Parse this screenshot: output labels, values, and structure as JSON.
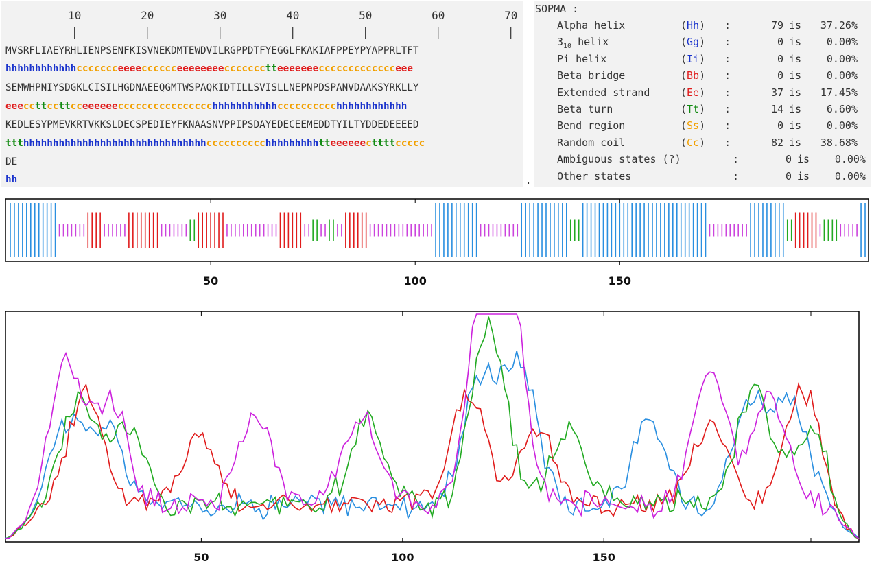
{
  "sequence_panel": {
    "ruler_numbers": [
      "10",
      "20",
      "30",
      "40",
      "50",
      "60",
      "70"
    ],
    "sequence_lines": [
      "MVSRFLIAEYRHLIENPSENFKISVNEKDMTEWDVILRGPPDTFYEGGLFKAKIAFPPEYPYAPPRLTFT",
      "SEMWHPNIYSDGKLCISILHGDNAEEQGMTWSPAQKIDTILLSVISLLNEPNPDSPANVDAAKSYRKLLY",
      "KEDLESYPMEVKRTVKKSLDECSPEDIEYFKNAASNVPPIPSDAYEDECEEMEDDTYILTYDDEDEEEED",
      "DE"
    ],
    "structure_lines": [
      "hhhhhhhhhhhhccccccceeeecccccceeeeeeeeccccccctteeeeeeeccccccccccccceee",
      "eeeccttccttcceeeeeecccccccccccccccchhhhhhhhhhhcccccccccchhhhhhhhhhhh",
      "ttthhhhhhhhhhhhhhhhhhhhhhhhhhhhhhhcccccccccchhhhhhhhhtteeeeeecttttccccc",
      "hh"
    ],
    "trailing_mark": "."
  },
  "stats_panel": {
    "title": "SOPMA :",
    "rows": [
      {
        "label": "Alpha helix",
        "code": "(Hh)",
        "count": "79",
        "is": "is",
        "pct": "37.26%"
      },
      {
        "label_main": "3",
        "label_sub": "10",
        "label_rest": " helix",
        "code": "(Gg)",
        "count": "0",
        "is": "is",
        "pct": "0.00%"
      },
      {
        "label": "Pi helix",
        "code": "(Ii)",
        "count": "0",
        "is": "is",
        "pct": "0.00%"
      },
      {
        "label": "Beta bridge",
        "code": "(Bb)",
        "count": "0",
        "is": "is",
        "pct": "0.00%"
      },
      {
        "label": "Extended strand",
        "code": "(Ee)",
        "count": "37",
        "is": "is",
        "pct": "17.45%"
      },
      {
        "label": "Beta turn",
        "code": "(Tt)",
        "count": "14",
        "is": "is",
        "pct": "6.60%"
      },
      {
        "label": "Bend region",
        "code": "(Ss)",
        "count": "0",
        "is": "is",
        "pct": "0.00%"
      },
      {
        "label": "Random coil",
        "code": "(Cc)",
        "count": "82",
        "is": "is",
        "pct": "38.68%"
      },
      {
        "label": "Ambiguous states (?)",
        "code": "",
        "count": "0",
        "is": "is",
        "pct": "0.00%"
      },
      {
        "label": "Other states",
        "code": "",
        "count": "0",
        "is": "is",
        "pct": "0.00%"
      }
    ],
    "code_colors": {
      "(Hh)": "#1a33cc",
      "(Gg)": "#1a33cc",
      "(Ii)": "#1a33cc",
      "(Bb)": "#e01c1c",
      "(Ee)": "#e01c1c",
      "(Tt)": "#118a11",
      "(Ss)": "#f2a000",
      "(Cc)": "#f2a000"
    }
  },
  "structure_bar": {
    "colors": {
      "h": "#2a8fe0",
      "e": "#e01c1c",
      "t": "#22aa22",
      "c": "#cc44dd"
    },
    "axis_ticks": [
      "50",
      "100",
      "150"
    ]
  },
  "profile_plot": {
    "axis_ticks": [
      "50",
      "100",
      "150"
    ],
    "series_colors": [
      "#2a8fe0",
      "#e01c1c",
      "#22aa22",
      "#cc22dd"
    ]
  }
}
